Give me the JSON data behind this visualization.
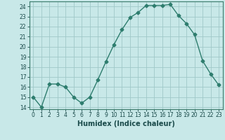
{
  "x": [
    0,
    1,
    2,
    3,
    4,
    5,
    6,
    7,
    8,
    9,
    10,
    11,
    12,
    13,
    14,
    15,
    16,
    17,
    18,
    19,
    20,
    21,
    22,
    23
  ],
  "y": [
    15,
    14,
    16.3,
    16.3,
    16,
    15,
    14.4,
    15,
    16.7,
    18.5,
    20.2,
    21.7,
    22.9,
    23.4,
    24.1,
    24.1,
    24.1,
    24.2,
    23.1,
    22.3,
    21.2,
    18.6,
    17.3,
    16.2
  ],
  "line_color": "#2e7d6e",
  "marker": "D",
  "marker_size": 2.5,
  "bg_color": "#c8e8e8",
  "grid_color": "#a0c8c8",
  "xlabel": "Humidex (Indice chaleur)",
  "ylim": [
    13.8,
    24.5
  ],
  "xlim": [
    -0.5,
    23.5
  ],
  "yticks": [
    14,
    15,
    16,
    17,
    18,
    19,
    20,
    21,
    22,
    23,
    24
  ],
  "xticks": [
    0,
    1,
    2,
    3,
    4,
    5,
    6,
    7,
    8,
    9,
    10,
    11,
    12,
    13,
    14,
    15,
    16,
    17,
    18,
    19,
    20,
    21,
    22,
    23
  ],
  "tick_label_fontsize": 5.5,
  "xlabel_fontsize": 7,
  "line_width": 1.0
}
